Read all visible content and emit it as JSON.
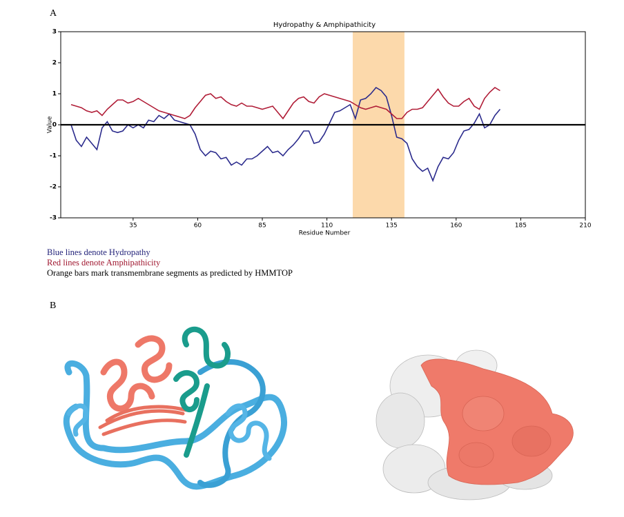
{
  "panel_labels": [
    "A",
    "B"
  ],
  "notes": [
    {
      "text": "Blue lines denote Hydropathy",
      "color": "#23237a"
    },
    {
      "text": "Red lines denote Amphipathicity",
      "color": "#a01830"
    },
    {
      "text": "Orange bars mark transmembrane segments as predicted by HMMTOP",
      "color": "#000000"
    }
  ],
  "chart_data": {
    "type": "line",
    "title": "Hydropathy & Amphipathicity",
    "xlabel": "Residue Number",
    "ylabel": "Value",
    "xlim": [
      7,
      210
    ],
    "ylim": [
      -3,
      3
    ],
    "xticks": [
      35,
      60,
      85,
      110,
      135,
      160,
      185,
      210
    ],
    "yticks": [
      -3,
      -2,
      -1,
      0,
      1,
      2,
      3
    ],
    "hline": 0,
    "highlight": {
      "span": [
        120,
        140
      ],
      "color": "#fcd9ab"
    },
    "x": [
      11,
      13,
      15,
      17,
      19,
      21,
      23,
      25,
      27,
      29,
      31,
      33,
      35,
      37,
      39,
      41,
      43,
      45,
      47,
      49,
      51,
      53,
      55,
      57,
      59,
      61,
      63,
      65,
      67,
      69,
      71,
      73,
      75,
      77,
      79,
      81,
      83,
      85,
      87,
      89,
      91,
      93,
      95,
      97,
      99,
      101,
      103,
      105,
      107,
      109,
      111,
      113,
      115,
      117,
      119,
      121,
      123,
      125,
      127,
      129,
      131,
      133,
      135,
      137,
      139,
      141,
      143,
      145,
      147,
      149,
      151,
      153,
      155,
      157,
      159,
      161,
      163,
      165,
      167,
      169,
      171,
      173,
      175,
      177
    ],
    "series": [
      {
        "name": "Hydropathy",
        "color": "#2a2a8c",
        "values": [
          0,
          -0.5,
          -0.7,
          -0.4,
          -0.6,
          -0.8,
          -0.1,
          0.1,
          -0.2,
          -0.25,
          -0.2,
          0,
          -0.1,
          0,
          -0.1,
          0.15,
          0.1,
          0.3,
          0.2,
          0.35,
          0.15,
          0.1,
          0.05,
          0,
          -0.3,
          -0.8,
          -1.0,
          -0.85,
          -0.9,
          -1.1,
          -1.05,
          -1.3,
          -1.2,
          -1.3,
          -1.1,
          -1.1,
          -1.0,
          -0.85,
          -0.7,
          -0.9,
          -0.85,
          -1.0,
          -0.8,
          -0.65,
          -0.45,
          -0.2,
          -0.2,
          -0.6,
          -0.55,
          -0.3,
          0.05,
          0.4,
          0.45,
          0.55,
          0.65,
          0.2,
          0.8,
          0.85,
          1.0,
          1.2,
          1.1,
          0.9,
          0.3,
          -0.4,
          -0.45,
          -0.6,
          -1.1,
          -1.35,
          -1.5,
          -1.4,
          -1.8,
          -1.35,
          -1.05,
          -1.1,
          -0.9,
          -0.5,
          -0.2,
          -0.15,
          0.05,
          0.35,
          -0.1,
          0,
          0.3,
          0.5
        ]
      },
      {
        "name": "Amphipathicity",
        "color": "#b01c36",
        "values": [
          0.65,
          0.6,
          0.55,
          0.45,
          0.4,
          0.45,
          0.3,
          0.5,
          0.65,
          0.8,
          0.8,
          0.7,
          0.75,
          0.85,
          0.75,
          0.65,
          0.55,
          0.45,
          0.4,
          0.35,
          0.3,
          0.25,
          0.2,
          0.3,
          0.55,
          0.75,
          0.95,
          1.0,
          0.85,
          0.9,
          0.75,
          0.65,
          0.6,
          0.7,
          0.6,
          0.6,
          0.55,
          0.5,
          0.55,
          0.6,
          0.4,
          0.2,
          0.45,
          0.7,
          0.85,
          0.9,
          0.75,
          0.7,
          0.9,
          1.0,
          0.95,
          0.9,
          0.85,
          0.8,
          0.75,
          0.65,
          0.55,
          0.5,
          0.55,
          0.6,
          0.55,
          0.5,
          0.35,
          0.2,
          0.2,
          0.4,
          0.5,
          0.5,
          0.55,
          0.75,
          0.95,
          1.15,
          0.9,
          0.7,
          0.6,
          0.6,
          0.75,
          0.85,
          0.6,
          0.5,
          0.85,
          1.05,
          1.2,
          1.1
        ]
      }
    ]
  }
}
